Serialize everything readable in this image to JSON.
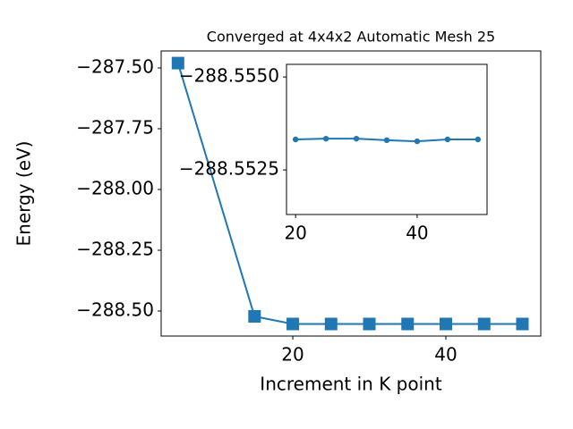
{
  "chart_data": [
    {
      "type": "line",
      "title": "Converged at 4x4x2 Automatic Mesh 25",
      "xlabel": "Increment in K point",
      "ylabel": "Energy (eV)",
      "x": [
        5,
        15,
        20,
        25,
        30,
        35,
        40,
        45,
        50
      ],
      "series": [
        {
          "color": "#1f77b4",
          "marker": "square",
          "values": [
            -287.48,
            -288.522,
            -288.55332,
            -288.55334,
            -288.55334,
            -288.5533,
            -288.55327,
            -288.55332,
            -288.55332
          ]
        }
      ],
      "xlim": [
        2.8,
        52.4
      ],
      "ylim": [
        -288.603,
        -287.43
      ],
      "xticks": [
        20,
        40
      ],
      "yticks": [
        {
          "value": -287.5,
          "label": "−287.50"
        },
        {
          "value": -287.75,
          "label": "−287.75"
        },
        {
          "value": -288.0,
          "label": "−288.00"
        },
        {
          "value": -288.25,
          "label": "−288.25"
        },
        {
          "value": -288.5,
          "label": "−288.50"
        }
      ]
    },
    {
      "type": "line",
      "x": [
        20,
        25,
        30,
        35,
        40,
        45,
        50
      ],
      "series": [
        {
          "color": "#1f77b4",
          "marker": "circle",
          "values": [
            -288.55332,
            -288.55334,
            -288.55334,
            -288.5533,
            -288.55327,
            -288.55332,
            -288.55332
          ]
        }
      ],
      "xlim": [
        18.5,
        51.5
      ],
      "ylim": [
        -288.5513,
        -288.55534
      ],
      "xticks": [
        20,
        40
      ],
      "yticks": [
        {
          "value": -288.555,
          "label": "−288.5550"
        },
        {
          "value": -288.5525,
          "label": "−288.5525"
        }
      ]
    }
  ]
}
